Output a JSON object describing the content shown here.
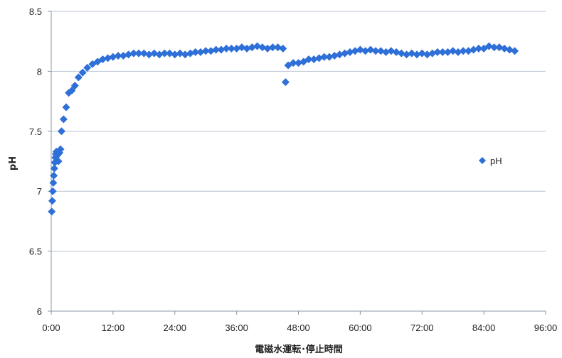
{
  "chart_data": {
    "type": "scatter",
    "xlabel": "電磁水運転･停止時間",
    "ylabel": "pH",
    "x_unit": "hours",
    "xlim": [
      0,
      96
    ],
    "ylim": [
      6,
      8.5
    ],
    "x_ticks": [
      {
        "value": 0,
        "label": "0:00"
      },
      {
        "value": 12,
        "label": "12:00"
      },
      {
        "value": 24,
        "label": "24:00"
      },
      {
        "value": 36,
        "label": "36:00"
      },
      {
        "value": 48,
        "label": "48:00"
      },
      {
        "value": 60,
        "label": "60:00"
      },
      {
        "value": 72,
        "label": "72:00"
      },
      {
        "value": 84,
        "label": "84:00"
      },
      {
        "value": 96,
        "label": "96:00"
      }
    ],
    "y_ticks": [
      {
        "value": 6,
        "label": "6"
      },
      {
        "value": 6.5,
        "label": "6.5"
      },
      {
        "value": 7,
        "label": "7"
      },
      {
        "value": 7.5,
        "label": "7.5"
      },
      {
        "value": 8,
        "label": "8"
      },
      {
        "value": 8.5,
        "label": "8.5"
      }
    ],
    "grid": "horizontal",
    "legend_position": "right",
    "marker": "diamond",
    "series": [
      {
        "name": "pH",
        "color": "#2e6fd8",
        "points": [
          [
            0.1,
            6.83
          ],
          [
            0.2,
            6.92
          ],
          [
            0.3,
            7.0
          ],
          [
            0.4,
            7.07
          ],
          [
            0.5,
            7.13
          ],
          [
            0.6,
            7.19
          ],
          [
            0.7,
            7.24
          ],
          [
            0.8,
            7.28
          ],
          [
            0.9,
            7.31
          ],
          [
            1.0,
            7.33
          ],
          [
            1.2,
            7.3
          ],
          [
            1.4,
            7.25
          ],
          [
            1.6,
            7.32
          ],
          [
            1.8,
            7.35
          ],
          [
            2.0,
            7.5
          ],
          [
            2.4,
            7.6
          ],
          [
            2.9,
            7.7
          ],
          [
            3.4,
            7.82
          ],
          [
            4.0,
            7.84
          ],
          [
            4.6,
            7.88
          ],
          [
            5.3,
            7.95
          ],
          [
            6.1,
            7.99
          ],
          [
            7.0,
            8.03
          ],
          [
            8.0,
            8.06
          ],
          [
            9.0,
            8.08
          ],
          [
            10.0,
            8.1
          ],
          [
            11.0,
            8.11
          ],
          [
            12.0,
            8.12
          ],
          [
            13.0,
            8.13
          ],
          [
            14.0,
            8.13
          ],
          [
            15.0,
            8.14
          ],
          [
            16.0,
            8.15
          ],
          [
            17.0,
            8.15
          ],
          [
            18.0,
            8.15
          ],
          [
            19.0,
            8.14
          ],
          [
            20.0,
            8.15
          ],
          [
            21.0,
            8.14
          ],
          [
            22.0,
            8.15
          ],
          [
            23.0,
            8.15
          ],
          [
            24.0,
            8.14
          ],
          [
            25.0,
            8.15
          ],
          [
            26.0,
            8.14
          ],
          [
            27.0,
            8.15
          ],
          [
            28.0,
            8.16
          ],
          [
            29.0,
            8.16
          ],
          [
            30.0,
            8.17
          ],
          [
            31.0,
            8.17
          ],
          [
            32.0,
            8.18
          ],
          [
            33.0,
            8.18
          ],
          [
            34.0,
            8.19
          ],
          [
            35.0,
            8.19
          ],
          [
            36.0,
            8.19
          ],
          [
            37.0,
            8.2
          ],
          [
            38.0,
            8.19
          ],
          [
            39.0,
            8.2
          ],
          [
            40.0,
            8.21
          ],
          [
            41.0,
            8.2
          ],
          [
            42.0,
            8.19
          ],
          [
            43.0,
            8.2
          ],
          [
            44.0,
            8.2
          ],
          [
            45.0,
            8.19
          ],
          [
            45.5,
            7.91
          ],
          [
            46.0,
            8.05
          ],
          [
            47.0,
            8.07
          ],
          [
            48.0,
            8.07
          ],
          [
            49.0,
            8.08
          ],
          [
            50.0,
            8.1
          ],
          [
            51.0,
            8.1
          ],
          [
            52.0,
            8.11
          ],
          [
            53.0,
            8.12
          ],
          [
            54.0,
            8.12
          ],
          [
            55.0,
            8.13
          ],
          [
            56.0,
            8.14
          ],
          [
            57.0,
            8.15
          ],
          [
            58.0,
            8.16
          ],
          [
            59.0,
            8.17
          ],
          [
            60.0,
            8.18
          ],
          [
            61.0,
            8.17
          ],
          [
            62.0,
            8.18
          ],
          [
            63.0,
            8.17
          ],
          [
            64.0,
            8.17
          ],
          [
            65.0,
            8.16
          ],
          [
            66.0,
            8.17
          ],
          [
            67.0,
            8.16
          ],
          [
            68.0,
            8.15
          ],
          [
            69.0,
            8.14
          ],
          [
            70.0,
            8.15
          ],
          [
            71.0,
            8.14
          ],
          [
            72.0,
            8.15
          ],
          [
            73.0,
            8.14
          ],
          [
            74.0,
            8.15
          ],
          [
            75.0,
            8.16
          ],
          [
            76.0,
            8.16
          ],
          [
            77.0,
            8.16
          ],
          [
            78.0,
            8.17
          ],
          [
            79.0,
            8.16
          ],
          [
            80.0,
            8.17
          ],
          [
            81.0,
            8.17
          ],
          [
            82.0,
            8.18
          ],
          [
            83.0,
            8.19
          ],
          [
            84.0,
            8.19
          ],
          [
            85.0,
            8.21
          ],
          [
            86.0,
            8.2
          ],
          [
            87.0,
            8.2
          ],
          [
            88.0,
            8.19
          ],
          [
            89.0,
            8.18
          ],
          [
            90.0,
            8.17
          ]
        ]
      }
    ]
  }
}
